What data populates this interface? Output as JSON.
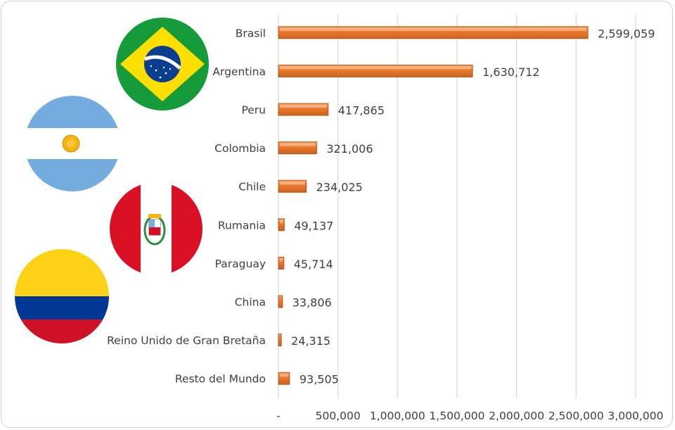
{
  "chart_data": {
    "type": "bar",
    "orientation": "horizontal",
    "categories": [
      "Brasil",
      "Argentina",
      "Peru",
      "Colombia",
      "Chile",
      "Rumania",
      "Paraguay",
      "China",
      "Reino Unido de Gran Bretaña",
      "Resto del Mundo"
    ],
    "values": [
      2599059,
      1630712,
      417865,
      321006,
      234025,
      49137,
      45714,
      33806,
      24315,
      93505
    ],
    "value_labels": [
      "2,599,059",
      "1,630,712",
      "417,865",
      "321,006",
      "234,025",
      "49,137",
      "45,714",
      "33,806",
      "24,315",
      "93,505"
    ],
    "x_ticks": [
      0,
      500000,
      1000000,
      1500000,
      2000000,
      2500000,
      3000000
    ],
    "x_tick_labels": [
      "-",
      "500,000",
      "1,000,000",
      "1,500,000",
      "2,000,000",
      "2,500,000",
      "3,000,000"
    ],
    "xlim": [
      0,
      3000000
    ],
    "grid": true,
    "bar_color": "#ED7D31",
    "bar_dark": "#B8561A",
    "grid_color": "#d9d9d9"
  },
  "flags": [
    {
      "name": "brazil-flag",
      "green": "#169B3A",
      "yellow": "#FEDF00",
      "blue": "#0B3D91"
    },
    {
      "name": "argentina-flag",
      "light_blue": "#74ACDF",
      "white": "#ffffff",
      "sun": "#F6B40E"
    },
    {
      "name": "peru-flag",
      "red": "#D91023",
      "white": "#ffffff"
    },
    {
      "name": "colombia-flag",
      "yellow": "#FCD116",
      "blue": "#003893",
      "red": "#CE1126"
    }
  ]
}
